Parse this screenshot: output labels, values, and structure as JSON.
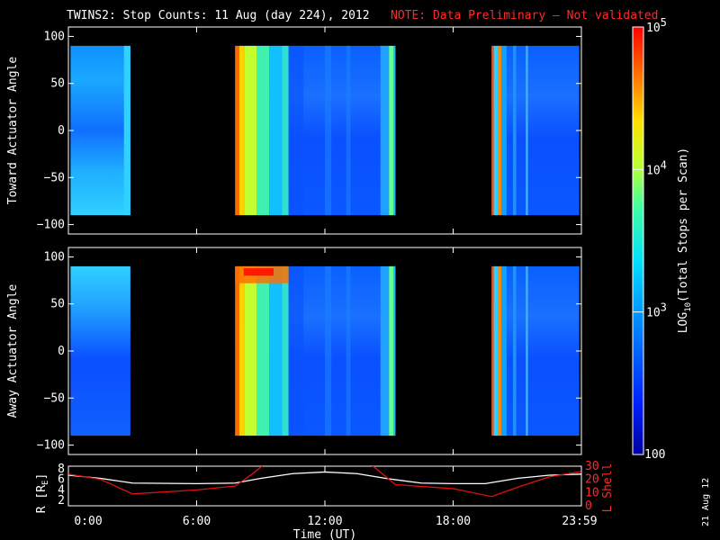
{
  "title": {
    "main": "TWINS2: Stop Counts: 11 Aug (day 224), 2012",
    "note": "NOTE: Data Preliminary – Not validated"
  },
  "stamp": "21 Aug 12",
  "colors": {
    "background": "#000000",
    "axis": "#ffffff",
    "note": "#ff2a2a",
    "r_line": "#ffffff",
    "lshell_line": "#e01010"
  },
  "chart_data": [
    {
      "type": "heatmap",
      "panel": "toward",
      "ylabel": "Toward Actuator Angle",
      "ylim": [
        -110,
        110
      ],
      "yticks": [
        "100",
        "50",
        "0",
        "−50",
        "−100"
      ],
      "data_range_y": [
        -90,
        90
      ],
      "xlim_hours": [
        0,
        24
      ],
      "data_blocks_hours": [
        [
          0.1,
          2.9
        ],
        [
          7.8,
          15.3
        ],
        [
          19.8,
          23.9
        ]
      ]
    },
    {
      "type": "heatmap",
      "panel": "away",
      "ylabel": "Away Actuator Angle",
      "ylim": [
        -110,
        110
      ],
      "yticks": [
        "100",
        "50",
        "0",
        "−50",
        "−100"
      ],
      "data_range_y": [
        -90,
        90
      ],
      "xlim_hours": [
        0,
        24
      ],
      "data_blocks_hours": [
        [
          0.1,
          2.9
        ],
        [
          7.8,
          15.3
        ],
        [
          19.8,
          23.9
        ]
      ]
    },
    {
      "type": "line",
      "panel": "orbit",
      "ylabel_left": "R [R",
      "ylabel_left_sub": "E",
      "ylabel_left_end": "]",
      "ylabel_right": "L Shell",
      "yticks_left": [
        "8",
        "6",
        "4",
        "2"
      ],
      "yticks_right": [
        "30",
        "20",
        "10",
        "0"
      ],
      "ylim_left": [
        1,
        8.5
      ],
      "ylim_right": [
        0,
        30
      ],
      "xlabel": "Time (UT)",
      "xticks": [
        "0:00",
        "6:00",
        "12:00",
        "18:00",
        "23:59"
      ],
      "xtick_hours": [
        0,
        6,
        12,
        18,
        24
      ],
      "series": [
        {
          "axis": "left",
          "color": "#ffffff",
          "x": [
            0,
            1.5,
            3,
            6,
            7.8,
            9,
            10.5,
            12,
            13.5,
            15,
            16.5,
            18,
            19.5,
            21,
            22.5,
            24
          ],
          "y": [
            6.8,
            6.2,
            5.3,
            5.2,
            5.3,
            6.2,
            7.1,
            7.4,
            7.1,
            6.1,
            5.3,
            5.2,
            5.2,
            6.2,
            6.8,
            7.0
          ]
        },
        {
          "axis": "right",
          "color": "#e01010",
          "x": [
            0,
            1.5,
            3,
            6,
            7.8,
            8.6,
            9.2,
            14.1,
            14.7,
            15.3,
            18,
            19.8,
            21,
            22.5,
            24
          ],
          "y": [
            24,
            20,
            9,
            12,
            15,
            24,
            32,
            32,
            24,
            16,
            13,
            7,
            14,
            22,
            26
          ]
        }
      ]
    }
  ],
  "colorbar": {
    "label": "LOG",
    "label_sub": "10",
    "label_end": "(Total Stops per Scan)",
    "ticks": [
      {
        "value": 100000,
        "base": "10",
        "exp": "5"
      },
      {
        "value": 10000,
        "base": "10",
        "exp": "4"
      },
      {
        "value": 1000,
        "base": "10",
        "exp": "3"
      },
      {
        "value": 100,
        "base": "100",
        "exp": ""
      }
    ],
    "range": [
      100,
      100000
    ]
  }
}
